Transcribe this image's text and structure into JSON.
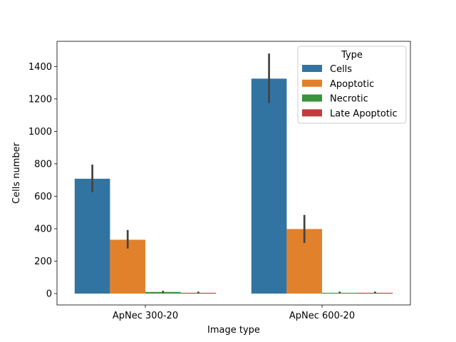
{
  "chart_data": {
    "type": "bar",
    "xlabel": "Image type",
    "ylabel": "Cells number",
    "categories": [
      "ApNec 300-20",
      "ApNec 600-20"
    ],
    "ylim": [
      -70,
      1555
    ],
    "yticks": [
      0,
      200,
      400,
      600,
      800,
      1000,
      1200,
      1400
    ],
    "grid": false,
    "legend": {
      "title": "Type",
      "position": "top-right"
    },
    "series": [
      {
        "name": "Cells",
        "color": "#3274a1",
        "values": [
          708,
          1325
        ],
        "ci": [
          [
            625,
            795
          ],
          [
            1175,
            1480
          ]
        ]
      },
      {
        "name": "Apoptotic",
        "color": "#e1812c",
        "values": [
          332,
          398
        ],
        "ci": [
          [
            278,
            392
          ],
          [
            312,
            485
          ]
        ]
      },
      {
        "name": "Necrotic",
        "color": "#3a923a",
        "values": [
          10,
          5
        ],
        "ci": [
          [
            5,
            17
          ],
          [
            1,
            12
          ]
        ]
      },
      {
        "name": "Late Apoptotic",
        "color": "#c03d3e",
        "values": [
          5,
          5
        ],
        "ci": [
          [
            1,
            12
          ],
          [
            1,
            12
          ]
        ]
      }
    ]
  }
}
